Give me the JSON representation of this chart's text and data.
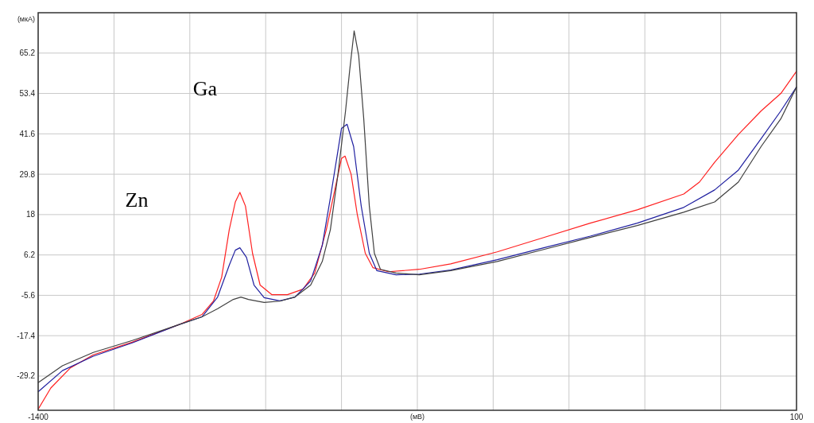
{
  "chart_data": {
    "type": "line",
    "xlabel": "(мВ)",
    "ylabel": "(мкА)",
    "xlim": [
      -1400,
      100
    ],
    "ylim": [
      -39.2,
      77
    ],
    "xticks": [
      -1400,
      {
        "value": -1250,
        "label": null
      },
      {
        "value": -1100,
        "label": null
      },
      {
        "value": -950,
        "label": null
      },
      {
        "value": -800,
        "label": null
      },
      {
        "value": -650,
        "label": null
      },
      {
        "value": -500,
        "label": null
      },
      {
        "value": -350,
        "label": null
      },
      {
        "value": -200,
        "label": null
      },
      {
        "value": -50,
        "label": null
      },
      100
    ],
    "yticks": [
      -29.2,
      -17.4,
      -5.6,
      6.2,
      18,
      29.8,
      41.6,
      53.4,
      65.2
    ],
    "grid": true,
    "marker": "none",
    "line_style": "solid",
    "annotations": [
      "Zn",
      "Ga"
    ],
    "series": [
      {
        "color": "#ff2020",
        "x": [
          -1400,
          -1375,
          -1337,
          -1291,
          -1214,
          -1122,
          -1076,
          -1053,
          -1037,
          -1022,
          -1010,
          -1001,
          -990,
          -976,
          -961,
          -938,
          -907,
          -876,
          -853,
          -830,
          -815,
          -800,
          -793,
          -781,
          -769,
          -753,
          -738,
          -707,
          -646,
          -584,
          -492,
          -400,
          -308,
          -215,
          -123,
          -92,
          -62,
          -15,
          30,
          69,
          100
        ],
        "values": [
          -38.9,
          -32.7,
          -26.9,
          -23.0,
          -19.3,
          -14.2,
          -11.2,
          -7.2,
          -0.3,
          13.6,
          21.7,
          24.5,
          20.5,
          6.7,
          -2.6,
          -5.4,
          -5.4,
          -3.8,
          0.9,
          13.6,
          24.0,
          34.4,
          35.1,
          29.8,
          18.2,
          6.7,
          2.5,
          1.3,
          2.0,
          3.6,
          7.1,
          11.3,
          15.5,
          19.4,
          24.0,
          27.5,
          33.3,
          41.4,
          48.3,
          53.4,
          59.9
        ]
      },
      {
        "color": "#2020a0",
        "x": [
          -1400,
          -1352,
          -1291,
          -1214,
          -1122,
          -1076,
          -1045,
          -1022,
          -1010,
          -1001,
          -988,
          -973,
          -953,
          -922,
          -892,
          -861,
          -838,
          -822,
          -807,
          -800,
          -789,
          -776,
          -761,
          -745,
          -730,
          -692,
          -646,
          -584,
          -492,
          -400,
          -308,
          -215,
          -123,
          -62,
          -15,
          30,
          69,
          100
        ],
        "values": [
          -33.8,
          -27.6,
          -23.4,
          -19.5,
          -14.2,
          -11.9,
          -6.1,
          3.2,
          7.6,
          8.3,
          5.5,
          -2.6,
          -6.3,
          -7.2,
          -6.1,
          -1.4,
          9.0,
          22.9,
          36.7,
          43.2,
          44.4,
          37.9,
          20.5,
          6.7,
          1.6,
          0.4,
          0.6,
          1.8,
          4.8,
          8.3,
          11.7,
          15.5,
          20.1,
          25.2,
          31.0,
          40.2,
          48.3,
          55.3
        ]
      },
      {
        "color": "#404040",
        "x": [
          -1400,
          -1352,
          -1291,
          -1214,
          -1122,
          -1076,
          -1045,
          -1014,
          -999,
          -984,
          -953,
          -922,
          -892,
          -861,
          -838,
          -822,
          -807,
          -792,
          -784,
          -775,
          -766,
          -756,
          -745,
          -735,
          -723,
          -692,
          -646,
          -584,
          -492,
          -400,
          -308,
          -215,
          -123,
          -62,
          -15,
          30,
          69,
          100
        ],
        "values": [
          -31.1,
          -26.2,
          -22.3,
          -18.8,
          -14.2,
          -11.9,
          -9.5,
          -6.8,
          -6.1,
          -6.8,
          -7.7,
          -7.3,
          -6.1,
          -2.6,
          4.3,
          13.6,
          29.8,
          48.3,
          59.9,
          71.7,
          64.5,
          46.0,
          20.5,
          6.7,
          2.0,
          0.9,
          0.4,
          1.6,
          4.3,
          7.8,
          11.3,
          14.8,
          18.7,
          21.7,
          27.5,
          37.9,
          46.0,
          55.3
        ]
      }
    ]
  }
}
